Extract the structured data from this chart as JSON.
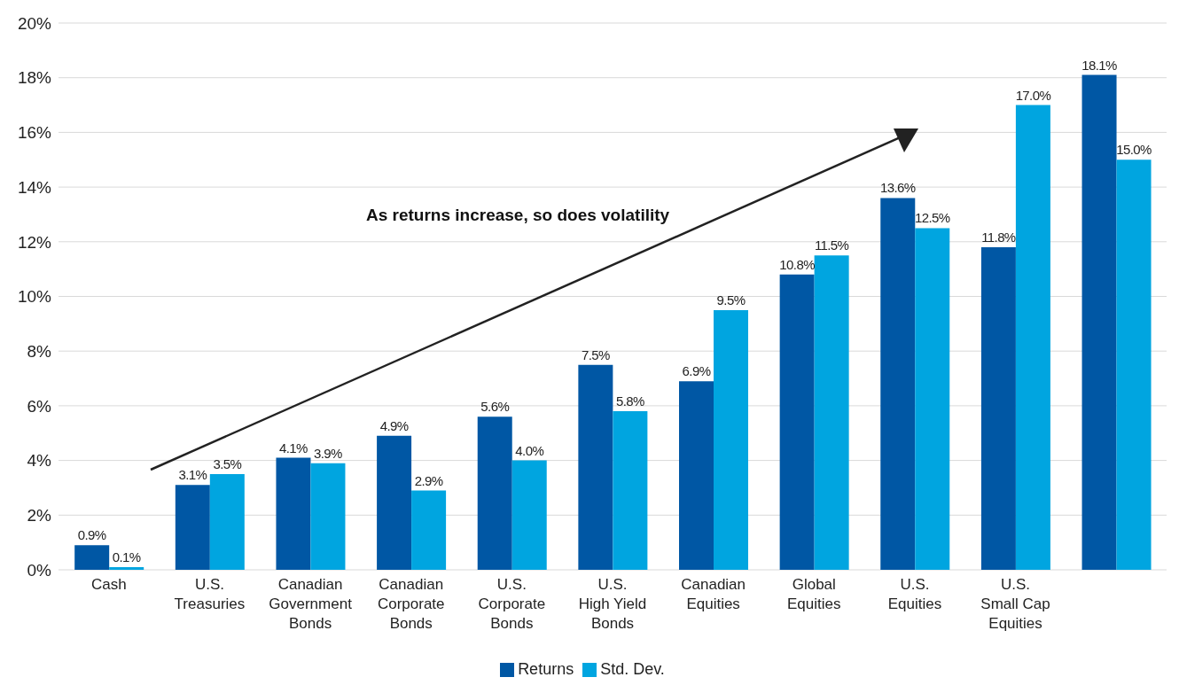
{
  "chart_data": {
    "type": "bar",
    "categories": [
      "Cash",
      "U.S.\nTreasuries",
      "Canadian\nGovernment\nBonds",
      "Canadian\nCorporate\nBonds",
      "U.S.\nCorporate\nBonds",
      "U.S.\nHigh Yield\nBonds",
      "Canadian\nEquities",
      "Global\nEquities",
      "U.S.\nEquities",
      "U.S.\nSmall Cap\nEquities",
      null
    ],
    "series": [
      {
        "name": "Returns",
        "color": "#0057a4",
        "values": [
          0.9,
          3.1,
          4.1,
          4.9,
          5.6,
          7.5,
          6.9,
          10.8,
          13.6,
          11.8,
          18.1
        ],
        "value_labels": [
          "0.9%",
          "3.1%",
          "4.1%",
          "4.9%",
          "5.6%",
          "7.5%",
          "6.9%",
          "10.8%",
          "13.6%",
          "11.8%",
          "18.1%"
        ]
      },
      {
        "name": "Std. Dev.",
        "color": "#00a5e0",
        "values": [
          0.1,
          3.5,
          3.9,
          2.9,
          4.0,
          5.8,
          9.5,
          11.5,
          12.5,
          17.0,
          15.0
        ],
        "value_labels": [
          "0.1%",
          "3.5%",
          "3.9%",
          "2.9%",
          "4.0%",
          "5.8%",
          "9.5%",
          "11.5%",
          "12.5%",
          "17.0%",
          "15.0%"
        ]
      }
    ],
    "ylim": [
      0,
      20
    ],
    "yticks": [
      {
        "value": 0,
        "label": "0%"
      },
      {
        "value": 2,
        "label": "2%"
      },
      {
        "value": 4,
        "label": "4%"
      },
      {
        "value": 6,
        "label": "6%"
      },
      {
        "value": 8,
        "label": "8%"
      },
      {
        "value": 10,
        "label": "10%"
      },
      {
        "value": 12,
        "label": "12%"
      },
      {
        "value": 14,
        "label": "14%"
      },
      {
        "value": 16,
        "label": "16%"
      },
      {
        "value": 18,
        "label": "18%"
      },
      {
        "value": 20,
        "label": "20%"
      }
    ],
    "grid": "y",
    "legend": "bottom",
    "annotations": [
      "As returns increase, so does volatility"
    ]
  }
}
